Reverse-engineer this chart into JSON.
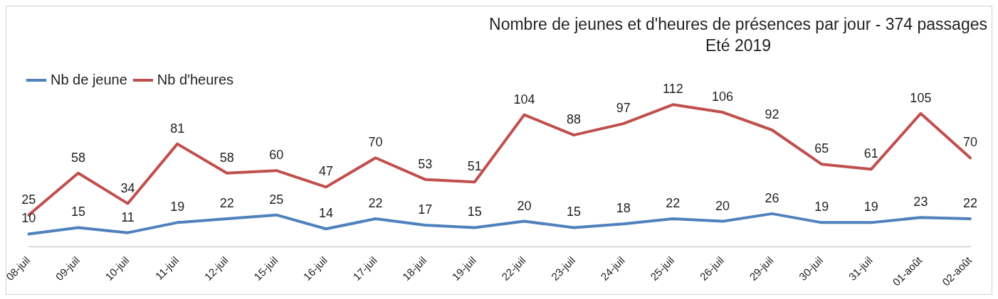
{
  "chart_data": {
    "type": "line",
    "title": "Nombre de jeunes et d'heures de présences par jour - 374 passages",
    "subtitle": "Eté 2019",
    "categories": [
      "08-juil",
      "09-juil",
      "10-juil",
      "11-juil",
      "12-juil",
      "15-juil",
      "16-juil",
      "17-juil",
      "18-juil",
      "19-juil",
      "22-juil",
      "23-juil",
      "24-juil",
      "25-juil",
      "26-juil",
      "29-juil",
      "30-juil",
      "31-juil",
      "01-août",
      "02-août"
    ],
    "series": [
      {
        "name": "Nb de jeune",
        "color": "#4f81bd",
        "values": [
          10,
          15,
          11,
          19,
          22,
          25,
          14,
          22,
          17,
          15,
          20,
          15,
          18,
          22,
          20,
          26,
          19,
          19,
          23,
          22
        ]
      },
      {
        "name": "Nb d'heures",
        "color": "#c0504d",
        "values": [
          25,
          58,
          34,
          81,
          58,
          60,
          47,
          70,
          53,
          51,
          104,
          88,
          97,
          112,
          106,
          92,
          65,
          61,
          105,
          70
        ]
      }
    ],
    "data_labels": true,
    "legend": "top left",
    "grid": false,
    "marker": "none",
    "line_style": "solid"
  }
}
